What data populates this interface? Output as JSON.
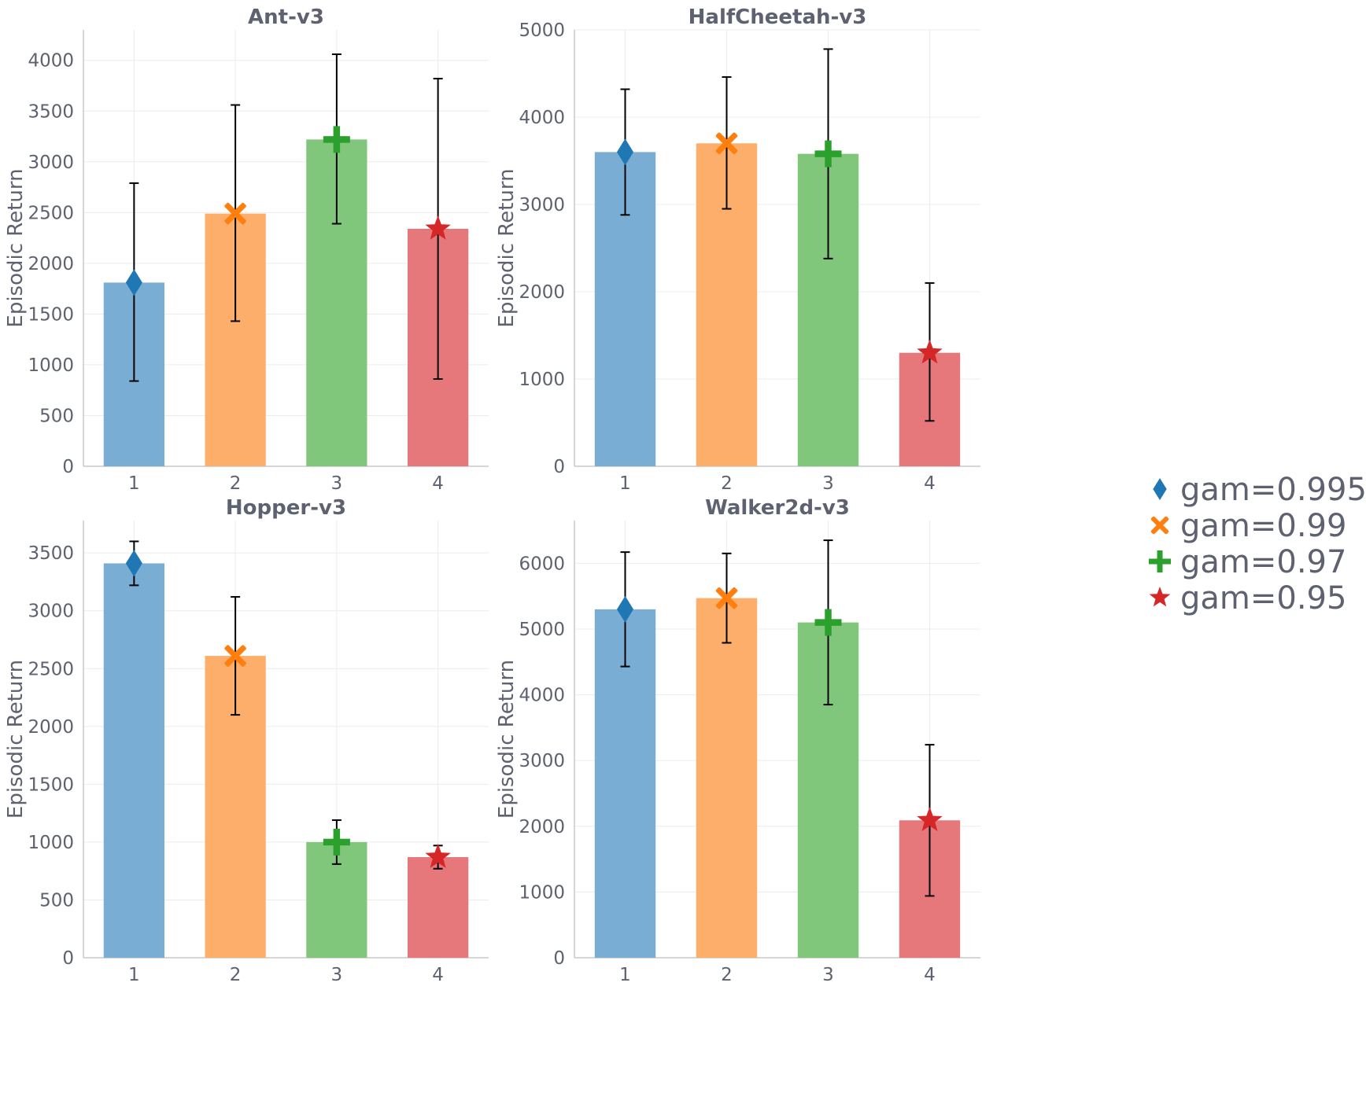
{
  "chart_data": [
    {
      "type": "bar",
      "title": "Ant-v3",
      "ylabel": "Episodic Return",
      "categories": [
        "1",
        "2",
        "3",
        "4"
      ],
      "values": [
        1810,
        2490,
        3220,
        2340
      ],
      "err_low": [
        840,
        1430,
        2390,
        860
      ],
      "err_high": [
        2790,
        3560,
        4060,
        3820
      ],
      "ylim": [
        0,
        4300
      ],
      "yticks": [
        0,
        500,
        1000,
        1500,
        2000,
        2500,
        3000,
        3500,
        4000
      ],
      "grid": true
    },
    {
      "type": "bar",
      "title": "HalfCheetah-v3",
      "ylabel": "Episodic Return",
      "categories": [
        "1",
        "2",
        "3",
        "4"
      ],
      "values": [
        3600,
        3700,
        3580,
        1300
      ],
      "err_low": [
        2880,
        2950,
        2380,
        520
      ],
      "err_high": [
        4320,
        4460,
        4780,
        2100
      ],
      "ylim": [
        0,
        5000
      ],
      "yticks": [
        0,
        1000,
        2000,
        3000,
        4000,
        5000
      ],
      "grid": true
    },
    {
      "type": "bar",
      "title": "Hopper-v3",
      "ylabel": "Episodic Return",
      "categories": [
        "1",
        "2",
        "3",
        "4"
      ],
      "values": [
        3410,
        2610,
        1000,
        870
      ],
      "err_low": [
        3220,
        2100,
        810,
        770
      ],
      "err_high": [
        3600,
        3120,
        1190,
        970
      ],
      "ylim": [
        0,
        3780
      ],
      "yticks": [
        0,
        500,
        1000,
        1500,
        2000,
        2500,
        3000,
        3500
      ],
      "grid": true
    },
    {
      "type": "bar",
      "title": "Walker2d-v3",
      "ylabel": "Episodic Return",
      "categories": [
        "1",
        "2",
        "3",
        "4"
      ],
      "values": [
        5300,
        5470,
        5100,
        2090
      ],
      "err_low": [
        4430,
        4790,
        3850,
        940
      ],
      "err_high": [
        6170,
        6150,
        6350,
        3240
      ],
      "ylim": [
        0,
        6650
      ],
      "yticks": [
        0,
        1000,
        2000,
        3000,
        4000,
        5000,
        6000
      ],
      "grid": true
    }
  ],
  "legend": {
    "placement": "right",
    "entries": [
      {
        "label": "gam=0.995",
        "color": "#1f77b4",
        "marker": "diamond",
        "bar_color": "#7aadd4"
      },
      {
        "label": "gam=0.99",
        "color": "#ff7f0e",
        "marker": "x",
        "bar_color": "#fdae6b"
      },
      {
        "label": "gam=0.97",
        "color": "#2ca02c",
        "marker": "plus",
        "bar_color": "#80c77b"
      },
      {
        "label": "gam=0.95",
        "color": "#d62728",
        "marker": "star",
        "bar_color": "#e6787b"
      }
    ]
  }
}
